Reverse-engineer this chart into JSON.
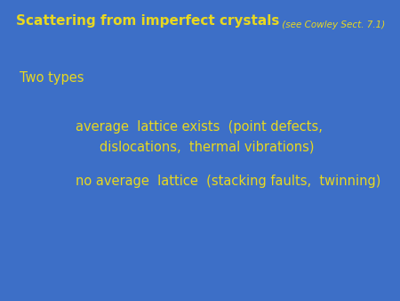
{
  "background_color": "#3d6fc7",
  "text_color": "#e8d820",
  "title_bold": "Scattering from imperfect crystals",
  "title_italic": " (see Cowley Sect. 7.1)",
  "line1": "Two types",
  "line2": "average  lattice exists  (point defects,",
  "line3": "dislocations,  thermal vibrations)",
  "line4": "no average  lattice  (stacking faults,  twinning)",
  "title_bold_fontsize": 11,
  "title_italic_fontsize": 7.5,
  "body_fontsize": 10.5,
  "twotypes_fontsize": 10.5,
  "fig_width": 4.5,
  "fig_height": 3.38,
  "dpi": 100
}
